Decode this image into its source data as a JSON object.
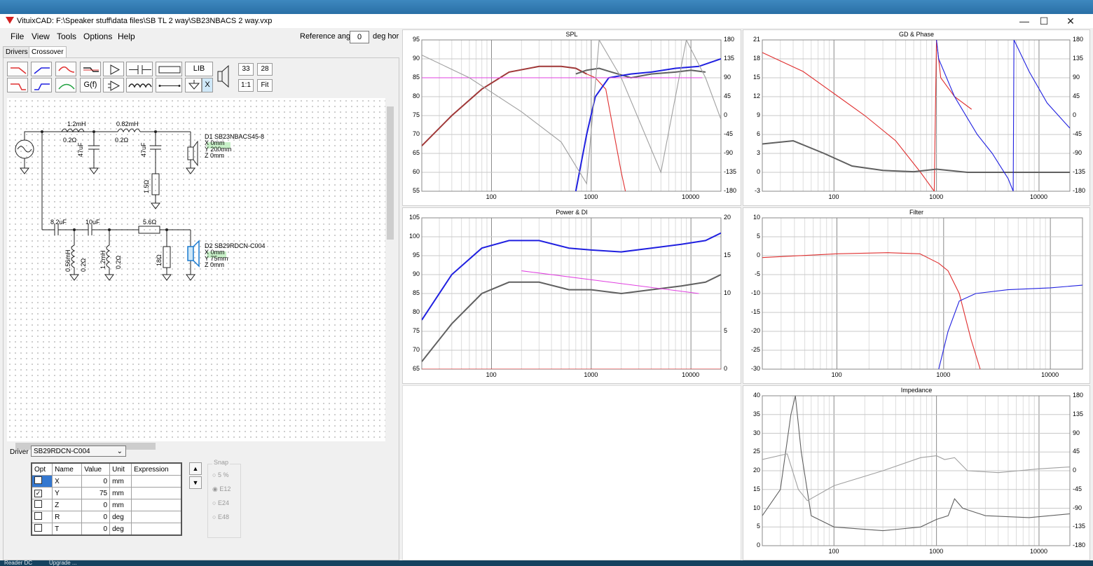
{
  "window": {
    "title": "VituixCAD: F:\\Speaker stuff\\data files\\SB TL 2 way\\SB23NBACS 2 way.vxp",
    "minimize": "—",
    "maximize": "☐",
    "close": "✕"
  },
  "menu": {
    "file": "File",
    "view": "View",
    "tools": "Tools",
    "options": "Options",
    "help": "Help"
  },
  "reference": {
    "label": "Reference angle",
    "value": "0",
    "unit": "deg hor"
  },
  "tabs": {
    "drivers": "Drivers",
    "crossover": "Crossover"
  },
  "toolbar": {
    "gf": "G(f)",
    "lib": "LIB",
    "x": "X",
    "v33": "33",
    "v28": "28",
    "one_to_one": "1:1",
    "fit": "Fit"
  },
  "schematic": {
    "l1": "1.2mH",
    "l1r": "0.2Ω",
    "l2": "0.82mH",
    "l2r": "0.2Ω",
    "c1": "47uF",
    "c2": "47uF",
    "r1": "1.5Ω",
    "d1_name": "D1 SB23NBACS45-8",
    "d1_x": "X 0mm",
    "d1_y": "Y 200mm",
    "d1_z": "Z 0mm",
    "c3": "8.2uF",
    "c4": "10uF",
    "r2": "5.6Ω",
    "l3": "0.56mH",
    "l3r": "0.2Ω",
    "l4": "1.2mH",
    "l4r": "0.2Ω",
    "r3": "18Ω",
    "d2_name": "D2 SB29RDCN-C004",
    "d2_x": "X 0mm",
    "d2_y": "Y 75mm",
    "d2_z": "Z 0mm"
  },
  "driver_panel": {
    "label": "Driver",
    "selected": "SB29RDCN-C004",
    "up": "▲",
    "down": "▼",
    "columns": [
      "Opt",
      "Name",
      "Value",
      "Unit",
      "Expression"
    ],
    "rows": [
      {
        "opt": "",
        "name": "X",
        "value": "0",
        "unit": "mm",
        "expr": ""
      },
      {
        "opt": "✓",
        "name": "Y",
        "value": "75",
        "unit": "mm",
        "expr": ""
      },
      {
        "opt": "",
        "name": "Z",
        "value": "0",
        "unit": "mm",
        "expr": ""
      },
      {
        "opt": "",
        "name": "R",
        "value": "0",
        "unit": "deg",
        "expr": ""
      },
      {
        "opt": "",
        "name": "T",
        "value": "0",
        "unit": "deg",
        "expr": ""
      }
    ],
    "snap": {
      "title": "Snap",
      "opts": [
        "5 %",
        "E12",
        "E24",
        "E48"
      ],
      "selected": "E12"
    }
  },
  "taskbar": {
    "item1": "Reader DC",
    "item2": "Upgrade ..."
  },
  "colors": {
    "red": "#e03030",
    "blue": "#2020e0",
    "dark": "#606060",
    "gray": "#a0a0a0",
    "magenta": "#e040e0",
    "brown": "#a03838"
  },
  "chart_data": [
    {
      "type": "line",
      "title": "SPL",
      "x_ticks": [
        "100",
        "1000",
        "10000"
      ],
      "y_ticks": [
        "95",
        "90",
        "85",
        "80",
        "75",
        "70",
        "65",
        "60",
        "55"
      ],
      "y2_ticks": [
        "180",
        "135",
        "90",
        "45",
        "0",
        "-45",
        "-90",
        "-135",
        "-180"
      ],
      "ylim": [
        55,
        95
      ],
      "y2lim": [
        -180,
        180
      ],
      "xscale": "log",
      "xlim": [
        20,
        20000
      ],
      "series": [
        {
          "color": "#a03838",
          "x": [
            20,
            40,
            80,
            150,
            300,
            500,
            700,
            900
          ],
          "y": [
            67,
            75,
            82,
            86.5,
            88,
            88,
            87.5,
            86
          ]
        },
        {
          "color": "#e03030",
          "x": [
            900,
            1100,
            1400,
            1700,
            2000,
            2200
          ],
          "y": [
            86,
            85,
            82,
            70,
            60,
            55
          ]
        },
        {
          "color": "#606060",
          "x": [
            700,
            900,
            1200,
            1600,
            2500,
            4000,
            7000,
            10000,
            14000
          ],
          "y": [
            86,
            87,
            87.5,
            86.5,
            85,
            86,
            86.5,
            87,
            86.5
          ]
        },
        {
          "color": "#2020e0",
          "x": [
            700,
            900,
            1100,
            1500,
            2500,
            4000,
            7000,
            12000,
            20000
          ],
          "y": [
            55,
            70,
            80,
            85,
            86,
            86.5,
            87.5,
            88,
            90
          ]
        },
        {
          "color": "#e040e0",
          "x": [
            20,
            13000
          ],
          "y": [
            85,
            85
          ]
        },
        {
          "color": "#a0a0a0",
          "x": [
            20,
            60,
            200,
            500,
            900,
            1200,
            2000,
            5000,
            9000,
            14000,
            20000
          ],
          "y": [
            91,
            85,
            76,
            68,
            57,
            95,
            85,
            60,
            95,
            85,
            74
          ]
        }
      ]
    },
    {
      "type": "line",
      "title": "GD & Phase",
      "x_ticks": [
        "100",
        "1000",
        "10000"
      ],
      "y_ticks": [
        "21",
        "18",
        "15",
        "12",
        "9",
        "6",
        "3",
        "0",
        "-3"
      ],
      "y2_ticks": [
        "180",
        "135",
        "90",
        "45",
        "0",
        "-45",
        "-90",
        "-135",
        "-180"
      ],
      "ylim": [
        -3,
        21
      ],
      "y2lim": [
        -180,
        180
      ],
      "xscale": "log",
      "xlim": [
        20,
        20000
      ],
      "series": [
        {
          "color": "#e03030",
          "x": [
            20,
            50,
            100,
            200,
            400,
            700,
            950,
            1000,
            1100,
            1500,
            2200
          ],
          "y": [
            19,
            16,
            12.5,
            9,
            5,
            0,
            -3,
            21,
            15,
            12,
            10
          ]
        },
        {
          "color": "#606060",
          "x": [
            20,
            40,
            80,
            150,
            300,
            600,
            1000,
            2000,
            5000,
            20000
          ],
          "y": [
            4.5,
            5,
            3,
            1,
            0.3,
            0.1,
            0.5,
            0,
            0,
            0
          ]
        },
        {
          "color": "#2020e0",
          "x": [
            1000,
            1050,
            1500,
            2500,
            3500,
            5000,
            5600,
            5700,
            8000,
            12000,
            20000
          ],
          "y": [
            21,
            18,
            12,
            6,
            3,
            -1,
            -3,
            21,
            16,
            11,
            7
          ]
        }
      ]
    },
    {
      "type": "line",
      "title": "Power & DI",
      "x_ticks": [
        "100",
        "1000",
        "10000"
      ],
      "y_ticks": [
        "105",
        "100",
        "95",
        "90",
        "85",
        "80",
        "75",
        "70",
        "65"
      ],
      "y2_ticks": [
        "20",
        "15",
        "10",
        "5",
        "0"
      ],
      "ylim": [
        65,
        105
      ],
      "y2lim": [
        0,
        20
      ],
      "xscale": "log",
      "xlim": [
        20,
        20000
      ],
      "series": [
        {
          "color": "#2020e0",
          "x": [
            20,
            40,
            80,
            150,
            300,
            600,
            1000,
            2000,
            4000,
            8000,
            14000,
            20000
          ],
          "y": [
            78,
            90,
            97,
            99,
            99,
            97,
            96.5,
            96,
            97,
            98,
            99,
            101
          ]
        },
        {
          "color": "#606060",
          "x": [
            20,
            40,
            80,
            150,
            300,
            600,
            1000,
            2000,
            4000,
            8000,
            14000,
            20000
          ],
          "y": [
            67,
            77,
            85,
            88,
            88,
            86,
            86,
            85,
            86,
            87,
            88,
            90
          ]
        },
        {
          "color": "#e040e0",
          "x": [
            200,
            12000
          ],
          "y": [
            91,
            85
          ]
        },
        {
          "color": "#e03030",
          "x": [
            20,
            20000
          ],
          "y": [
            65,
            65
          ]
        }
      ]
    },
    {
      "type": "line",
      "title": "Filter",
      "x_ticks": [
        "100",
        "1000",
        "10000"
      ],
      "y_ticks": [
        "10",
        "5",
        "0",
        "-5",
        "-10",
        "-15",
        "-20",
        "-25",
        "-30"
      ],
      "ylim": [
        -30,
        10
      ],
      "xscale": "log",
      "xlim": [
        20,
        20000
      ],
      "series": [
        {
          "color": "#e03030",
          "x": [
            20,
            100,
            300,
            600,
            900,
            1100,
            1400,
            1800,
            2200
          ],
          "y": [
            -0.5,
            0.5,
            0.8,
            0.5,
            -2,
            -4,
            -10,
            -22,
            -30
          ]
        },
        {
          "color": "#2020e0",
          "x": [
            900,
            1100,
            1400,
            2000,
            4000,
            10000,
            20000
          ],
          "y": [
            -30,
            -20,
            -12,
            -10,
            -9,
            -8.5,
            -7.8
          ]
        }
      ]
    },
    {
      "type": "line",
      "title": "Impedance",
      "x_ticks": [
        "100",
        "1000",
        "10000"
      ],
      "y_ticks": [
        "40",
        "35",
        "30",
        "25",
        "20",
        "15",
        "10",
        "5",
        "0"
      ],
      "y2_ticks": [
        "180",
        "135",
        "90",
        "45",
        "0",
        "-45",
        "-90",
        "-135",
        "-180"
      ],
      "ylim": [
        0,
        40
      ],
      "y2lim": [
        -180,
        180
      ],
      "xscale": "log",
      "xlim": [
        20,
        20000
      ],
      "series": [
        {
          "color": "#606060",
          "x": [
            20,
            30,
            38,
            42,
            48,
            60,
            100,
            300,
            700,
            1000,
            1300,
            1500,
            1800,
            3000,
            8000,
            20000
          ],
          "y": [
            8,
            15,
            35,
            40,
            25,
            8,
            5,
            4,
            5,
            7,
            8,
            12.5,
            10,
            8,
            7.5,
            8.5
          ]
        },
        {
          "color": "#a0a0a0",
          "x": [
            20,
            35,
            45,
            55,
            100,
            300,
            700,
            1000,
            1200,
            1500,
            2000,
            4000,
            10000,
            20000
          ],
          "y": [
            23,
            24.5,
            15,
            12,
            16,
            20,
            23.5,
            24,
            23,
            23.5,
            20,
            19.5,
            20.5,
            21
          ]
        }
      ]
    }
  ]
}
